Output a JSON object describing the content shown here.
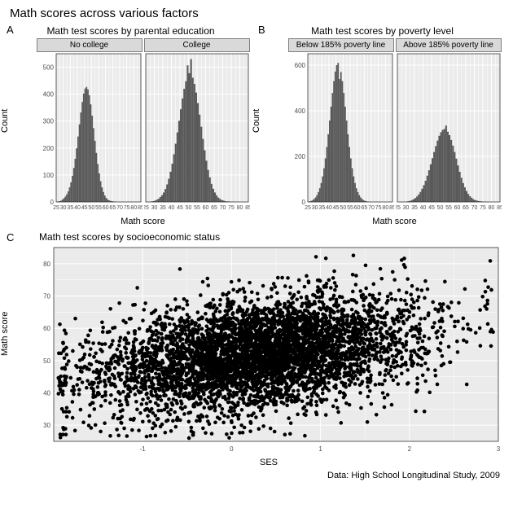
{
  "main_title": "Math scores across various factors",
  "caption": "Data: High School Longitudinal Study, 2009",
  "colors": {
    "background": "#ffffff",
    "panel_bg": "#ebebeb",
    "strip_bg": "#d9d9d9",
    "strip_border": "#7f7f7f",
    "grid": "#ffffff",
    "bar_fill": "#595959",
    "point_fill": "#000000",
    "text": "#000000",
    "tick_text": "#4d4d4d"
  },
  "panelA": {
    "label": "A",
    "title": "Math test scores by parental education",
    "xlabel": "Math score",
    "ylabel": "Count",
    "xlim": [
      25,
      85
    ],
    "xticks": [
      25,
      30,
      35,
      40,
      45,
      50,
      55,
      60,
      65,
      70,
      75,
      80,
      85
    ],
    "facets": [
      {
        "strip": "No college",
        "ylim": [
          0,
          550
        ],
        "yticks": [
          0,
          100,
          200,
          300,
          400,
          500
        ],
        "bins": [
          [
            26,
            2
          ],
          [
            27,
            3
          ],
          [
            28,
            5
          ],
          [
            29,
            9
          ],
          [
            30,
            14
          ],
          [
            31,
            20
          ],
          [
            32,
            28
          ],
          [
            33,
            39
          ],
          [
            34,
            54
          ],
          [
            35,
            73
          ],
          [
            36,
            97
          ],
          [
            37,
            126
          ],
          [
            38,
            160
          ],
          [
            39,
            199
          ],
          [
            40,
            243
          ],
          [
            41,
            288
          ],
          [
            42,
            332
          ],
          [
            43,
            371
          ],
          [
            44,
            402
          ],
          [
            45,
            421
          ],
          [
            46,
            427
          ],
          [
            47,
            418
          ],
          [
            48,
            396
          ],
          [
            49,
            362
          ],
          [
            50,
            320
          ],
          [
            51,
            274
          ],
          [
            52,
            227
          ],
          [
            53,
            182
          ],
          [
            54,
            141
          ],
          [
            55,
            106
          ],
          [
            56,
            77
          ],
          [
            57,
            54
          ],
          [
            58,
            37
          ],
          [
            59,
            24
          ],
          [
            60,
            15
          ],
          [
            61,
            9
          ],
          [
            62,
            6
          ],
          [
            63,
            4
          ],
          [
            64,
            3
          ],
          [
            65,
            2
          ],
          [
            66,
            1
          ],
          [
            67,
            1
          ]
        ]
      },
      {
        "strip": "College",
        "ylim": [
          0,
          550
        ],
        "yticks": [
          0,
          100,
          200,
          300,
          400,
          500
        ],
        "bins": [
          [
            28,
            2
          ],
          [
            29,
            3
          ],
          [
            30,
            5
          ],
          [
            31,
            8
          ],
          [
            32,
            12
          ],
          [
            33,
            18
          ],
          [
            34,
            25
          ],
          [
            35,
            35
          ],
          [
            36,
            48
          ],
          [
            37,
            65
          ],
          [
            38,
            86
          ],
          [
            39,
            112
          ],
          [
            40,
            142
          ],
          [
            41,
            177
          ],
          [
            42,
            216
          ],
          [
            43,
            258
          ],
          [
            44,
            301
          ],
          [
            45,
            344
          ],
          [
            46,
            384
          ],
          [
            47,
            420
          ],
          [
            48,
            448
          ],
          [
            49,
            507
          ],
          [
            50,
            478
          ],
          [
            51,
            530
          ],
          [
            52,
            461
          ],
          [
            53,
            438
          ],
          [
            54,
            406
          ],
          [
            55,
            367
          ],
          [
            56,
            324
          ],
          [
            57,
            279
          ],
          [
            58,
            234
          ],
          [
            59,
            192
          ],
          [
            60,
            153
          ],
          [
            61,
            119
          ],
          [
            62,
            91
          ],
          [
            63,
            67
          ],
          [
            64,
            49
          ],
          [
            65,
            35
          ],
          [
            66,
            24
          ],
          [
            67,
            16
          ],
          [
            68,
            11
          ],
          [
            69,
            7
          ],
          [
            70,
            5
          ],
          [
            71,
            3
          ],
          [
            72,
            2
          ],
          [
            73,
            2
          ],
          [
            74,
            1
          ],
          [
            75,
            1
          ],
          [
            76,
            1
          ]
        ]
      }
    ]
  },
  "panelB": {
    "label": "B",
    "title": "Math test scores by poverty level",
    "xlabel": "Math score",
    "ylabel": "Count",
    "xlim": [
      25,
      85
    ],
    "xticks": [
      25,
      30,
      35,
      40,
      45,
      50,
      55,
      60,
      65,
      70,
      75,
      80,
      85
    ],
    "facets": [
      {
        "strip": "Below 185% poverty line",
        "ylim": [
          0,
          650
        ],
        "yticks": [
          0,
          200,
          400,
          600
        ],
        "bins": [
          [
            26,
            3
          ],
          [
            27,
            5
          ],
          [
            28,
            8
          ],
          [
            29,
            13
          ],
          [
            30,
            20
          ],
          [
            31,
            30
          ],
          [
            32,
            43
          ],
          [
            33,
            60
          ],
          [
            34,
            83
          ],
          [
            35,
            112
          ],
          [
            36,
            148
          ],
          [
            37,
            191
          ],
          [
            38,
            241
          ],
          [
            39,
            297
          ],
          [
            40,
            357
          ],
          [
            41,
            418
          ],
          [
            42,
            478
          ],
          [
            43,
            530
          ],
          [
            44,
            572
          ],
          [
            45,
            600
          ],
          [
            46,
            610
          ],
          [
            47,
            539
          ],
          [
            48,
            570
          ],
          [
            49,
            530
          ],
          [
            50,
            478
          ],
          [
            51,
            418
          ],
          [
            52,
            357
          ],
          [
            53,
            297
          ],
          [
            54,
            241
          ],
          [
            55,
            191
          ],
          [
            56,
            148
          ],
          [
            57,
            112
          ],
          [
            58,
            83
          ],
          [
            59,
            60
          ],
          [
            60,
            43
          ],
          [
            61,
            30
          ],
          [
            62,
            20
          ],
          [
            63,
            13
          ],
          [
            64,
            8
          ],
          [
            65,
            5
          ],
          [
            66,
            3
          ],
          [
            67,
            2
          ],
          [
            68,
            1
          ]
        ]
      },
      {
        "strip": "Above 185% poverty line",
        "ylim": [
          0,
          650
        ],
        "yticks": [
          0,
          200,
          400,
          600
        ],
        "bins": [
          [
            30,
            2
          ],
          [
            31,
            3
          ],
          [
            32,
            5
          ],
          [
            33,
            8
          ],
          [
            34,
            12
          ],
          [
            35,
            17
          ],
          [
            36,
            24
          ],
          [
            37,
            33
          ],
          [
            38,
            44
          ],
          [
            39,
            58
          ],
          [
            40,
            74
          ],
          [
            41,
            93
          ],
          [
            42,
            115
          ],
          [
            43,
            139
          ],
          [
            44,
            165
          ],
          [
            45,
            192
          ],
          [
            46,
            219
          ],
          [
            47,
            245
          ],
          [
            48,
            269
          ],
          [
            49,
            290
          ],
          [
            50,
            306
          ],
          [
            51,
            316
          ],
          [
            52,
            320
          ],
          [
            53,
            335
          ],
          [
            54,
            308
          ],
          [
            55,
            293
          ],
          [
            56,
            272
          ],
          [
            57,
            247
          ],
          [
            58,
            219
          ],
          [
            59,
            190
          ],
          [
            60,
            160
          ],
          [
            61,
            132
          ],
          [
            62,
            106
          ],
          [
            63,
            83
          ],
          [
            64,
            64
          ],
          [
            65,
            48
          ],
          [
            66,
            35
          ],
          [
            67,
            25
          ],
          [
            68,
            18
          ],
          [
            69,
            12
          ],
          [
            70,
            8
          ],
          [
            71,
            6
          ],
          [
            72,
            4
          ],
          [
            73,
            3
          ],
          [
            74,
            2
          ],
          [
            75,
            1
          ],
          [
            76,
            1
          ],
          [
            77,
            1
          ]
        ]
      }
    ]
  },
  "panelC": {
    "label": "C",
    "title": "Math test scores by socioeconomic status",
    "xlabel": "SES",
    "ylabel": "Math score",
    "xlim": [
      -2,
      3
    ],
    "xticks": [
      -1,
      0,
      1,
      2,
      3
    ],
    "ylim": [
      25,
      85
    ],
    "yticks": [
      30,
      40,
      50,
      60,
      70,
      80
    ],
    "n_points": 5000,
    "point_radius": 2.3,
    "cloud_center": [
      0.3,
      52
    ],
    "cloud_spread": [
      0.9,
      9
    ],
    "correlation": 0.35
  }
}
